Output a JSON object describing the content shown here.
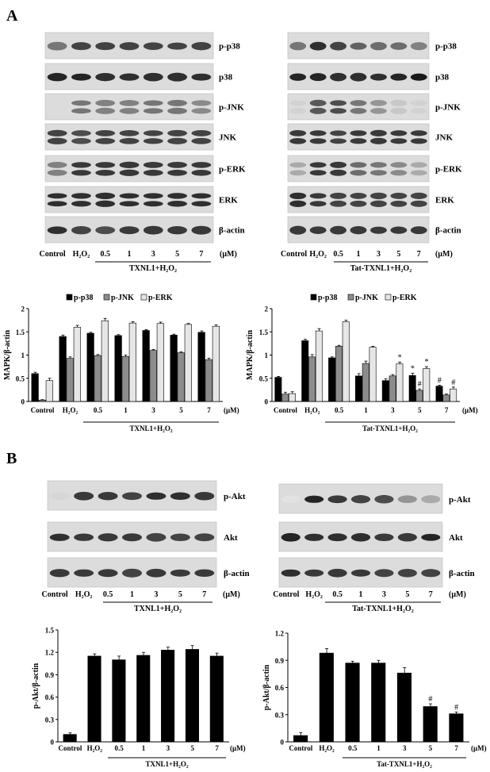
{
  "panel_labels": [
    "A",
    "B"
  ],
  "units": "(μM)",
  "lane_labels": [
    "Control",
    "H₂O₂",
    "0.5",
    "1",
    "3",
    "5",
    "7"
  ],
  "blots": {
    "A_left": {
      "rows": [
        "p-p38",
        "p38",
        "p-JNK",
        "JNK",
        "p-ERK",
        "ERK",
        "β-actin"
      ],
      "group_label": "TXNL1+H₂O₂"
    },
    "A_right": {
      "rows": [
        "p-p38",
        "p38",
        "p-JNK",
        "JNK",
        "p-ERK",
        "ERK",
        "β-actin"
      ],
      "group_label": "Tat-TXNL1+H₂O₂"
    },
    "B_left": {
      "rows": [
        "p-Akt",
        "Akt",
        "β-actin"
      ],
      "group_label": "TXNL1+H₂O₂"
    },
    "B_right": {
      "rows": [
        "p-Akt",
        "Akt",
        "β-actin"
      ],
      "group_label": "Tat-TXNL1+H₂O₂"
    }
  },
  "chart_data": [
    {
      "id": "A_left_bar",
      "type": "bar",
      "categories": [
        "Control",
        "H₂O₂",
        "0.5",
        "1",
        "3",
        "5",
        "7"
      ],
      "series": [
        {
          "name": "p-p38",
          "color": "#000000",
          "values": [
            0.6,
            1.4,
            1.47,
            1.42,
            1.53,
            1.43,
            1.49
          ],
          "errors": [
            0.03,
            0.03,
            0.02,
            0.02,
            0.02,
            0.02,
            0.03
          ]
        },
        {
          "name": "p-JNK",
          "color": "#8c8c8c",
          "values": [
            0.03,
            0.93,
            0.99,
            0.97,
            1.1,
            1.05,
            0.9
          ],
          "errors": [
            0.01,
            0.03,
            0.02,
            0.03,
            0.02,
            0.02,
            0.03
          ]
        },
        {
          "name": "p-ERK",
          "color": "#e6e6e6",
          "values": [
            0.45,
            1.6,
            1.74,
            1.69,
            1.68,
            1.66,
            1.62
          ],
          "errors": [
            0.05,
            0.04,
            0.05,
            0.03,
            0.03,
            0.02,
            0.03
          ]
        }
      ],
      "ylabel": "MAPK/β-actin",
      "ylim": [
        0,
        2
      ],
      "yticks": [
        "0",
        "0.5",
        "1",
        "1.5",
        "2"
      ],
      "legend": "top",
      "group_label": "TXNL1+H₂O₂",
      "units": "(μM)"
    },
    {
      "id": "A_right_bar",
      "type": "bar",
      "categories": [
        "Control",
        "H₂O₂",
        "0.5",
        "1",
        "3",
        "5",
        "7"
      ],
      "series": [
        {
          "name": "p-p38",
          "color": "#000000",
          "values": [
            0.52,
            1.31,
            0.94,
            0.55,
            0.45,
            0.56,
            0.33
          ],
          "errors": [
            0.02,
            0.03,
            0.02,
            0.05,
            0.04,
            0.05,
            0.02
          ]
        },
        {
          "name": "p-JNK",
          "color": "#8c8c8c",
          "values": [
            0.16,
            0.96,
            1.19,
            0.82,
            0.55,
            0.24,
            0.14
          ],
          "errors": [
            0.04,
            0.05,
            0.02,
            0.05,
            0.03,
            0.03,
            0.02
          ]
        },
        {
          "name": "p-ERK",
          "color": "#e6e6e6",
          "values": [
            0.17,
            1.52,
            1.72,
            1.17,
            0.81,
            0.71,
            0.27
          ],
          "errors": [
            0.04,
            0.05,
            0.03,
            0.02,
            0.04,
            0.04,
            0.04
          ]
        }
      ],
      "annotations": [
        {
          "category": "3",
          "series": "p-ERK",
          "text": "*"
        },
        {
          "category": "5",
          "series": "p-p38",
          "text": "*"
        },
        {
          "category": "5",
          "series": "p-JNK",
          "text": "#"
        },
        {
          "category": "5",
          "series": "p-ERK",
          "text": "*"
        },
        {
          "category": "7",
          "series": "p-p38",
          "text": "#"
        },
        {
          "category": "7",
          "series": "p-ERK",
          "text": "#"
        }
      ],
      "ylabel": "MAPK/β-actin",
      "ylim": [
        0,
        2
      ],
      "yticks": [
        "0",
        "0.5",
        "1",
        "1.5",
        "2"
      ],
      "legend": "top",
      "group_label": "Tat-TXNL1+H₂O₂",
      "units": "(μM)"
    },
    {
      "id": "B_left_bar",
      "type": "bar",
      "categories": [
        "Control",
        "H₂O₂",
        "0.5",
        "1",
        "3",
        "5",
        "7"
      ],
      "series": [
        {
          "name": "",
          "color": "#000000",
          "values": [
            0.1,
            1.15,
            1.1,
            1.16,
            1.23,
            1.24,
            1.15
          ],
          "errors": [
            0.02,
            0.03,
            0.05,
            0.04,
            0.04,
            0.05,
            0.04
          ]
        }
      ],
      "ylabel": "p-Akt/β-actin",
      "ylim": [
        0,
        1.5
      ],
      "yticks": [
        "0",
        "0.3",
        "0.6",
        "0.9",
        "1.2",
        "1.5"
      ],
      "group_label": "TXNL1+H₂O₂",
      "units": "(μM)"
    },
    {
      "id": "B_right_bar",
      "type": "bar",
      "categories": [
        "Control",
        "H₂O₂",
        "0.5",
        "1",
        "3",
        "5",
        "7"
      ],
      "series": [
        {
          "name": "",
          "color": "#000000",
          "values": [
            0.07,
            0.98,
            0.87,
            0.87,
            0.76,
            0.39,
            0.31
          ],
          "errors": [
            0.03,
            0.05,
            0.02,
            0.03,
            0.06,
            0.03,
            0.02
          ]
        }
      ],
      "annotations": [
        {
          "category": "5",
          "series": "",
          "text": "#"
        },
        {
          "category": "7",
          "series": "",
          "text": "#"
        }
      ],
      "ylabel": "p-Akt/β-actin",
      "ylim": [
        0,
        1.2
      ],
      "yticks": [
        "0",
        "0.3",
        "0.6",
        "0.9",
        "1.2"
      ],
      "group_label": "Tat-TXNL1+H₂O₂",
      "units": "(μM)"
    }
  ]
}
